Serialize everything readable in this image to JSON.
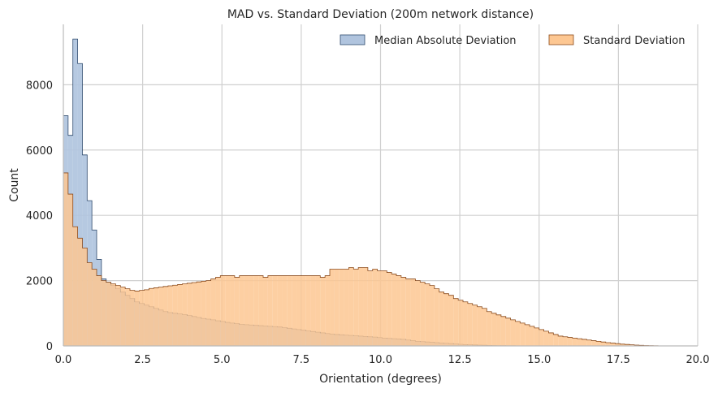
{
  "chart_data": {
    "type": "histogram",
    "title": "MAD vs. Standard Deviation (200m network distance)",
    "xlabel": "Orientation (degrees)",
    "ylabel": "Count",
    "xlim": [
      0,
      20
    ],
    "ylim": [
      0,
      9850
    ],
    "xticks": [
      "0.0",
      "2.5",
      "5.0",
      "7.5",
      "10.0",
      "12.5",
      "15.0",
      "17.5",
      "20.0"
    ],
    "yticks": [
      "0",
      "2000",
      "4000",
      "6000",
      "8000"
    ],
    "grid": true,
    "legend_position": "top-right",
    "bin_width": 0.15,
    "series": [
      {
        "name": "Median Absolute Deviation",
        "fill": "#b0c4de",
        "edge": "#2f4b6e",
        "bin_start": 0.0,
        "counts": [
          7050,
          6450,
          9400,
          8650,
          5850,
          4450,
          3550,
          2650,
          2050,
          1950,
          1850,
          1750,
          1650,
          1550,
          1450,
          1350,
          1300,
          1250,
          1200,
          1150,
          1100,
          1050,
          1020,
          1000,
          980,
          960,
          930,
          900,
          870,
          840,
          820,
          800,
          770,
          750,
          720,
          700,
          680,
          660,
          650,
          640,
          630,
          620,
          610,
          600,
          590,
          580,
          560,
          540,
          520,
          500,
          480,
          460,
          440,
          420,
          400,
          380,
          360,
          350,
          340,
          330,
          320,
          310,
          300,
          290,
          280,
          270,
          255,
          240,
          230,
          220,
          210,
          200,
          180,
          160,
          140,
          130,
          120,
          110,
          100,
          90,
          80,
          70,
          60,
          50,
          40,
          35,
          30,
          25,
          20,
          15,
          12,
          10,
          8,
          6,
          5,
          4,
          3,
          2,
          1,
          1,
          0,
          0,
          0,
          0,
          0,
          0,
          0,
          0,
          0,
          0,
          0,
          0,
          0,
          0,
          0,
          0,
          0,
          0,
          0,
          0,
          0,
          0,
          0,
          0,
          0,
          0,
          0,
          0,
          0,
          0,
          0,
          0,
          0,
          0
        ]
      },
      {
        "name": "Standard Deviation",
        "fill": "#fdc792",
        "edge": "#8b4a1a",
        "bin_start": 0.0,
        "counts": [
          5300,
          4650,
          3650,
          3300,
          3000,
          2550,
          2350,
          2150,
          2000,
          1950,
          1900,
          1850,
          1800,
          1750,
          1700,
          1680,
          1700,
          1720,
          1760,
          1780,
          1800,
          1820,
          1840,
          1860,
          1880,
          1900,
          1920,
          1940,
          1960,
          1980,
          2000,
          2050,
          2100,
          2150,
          2150,
          2150,
          2100,
          2150,
          2150,
          2150,
          2150,
          2150,
          2100,
          2150,
          2150,
          2150,
          2150,
          2150,
          2150,
          2150,
          2150,
          2150,
          2150,
          2150,
          2100,
          2150,
          2350,
          2350,
          2350,
          2350,
          2400,
          2350,
          2400,
          2400,
          2300,
          2350,
          2300,
          2300,
          2250,
          2200,
          2150,
          2100,
          2050,
          2050,
          2000,
          1950,
          1900,
          1850,
          1750,
          1650,
          1600,
          1550,
          1450,
          1400,
          1350,
          1300,
          1250,
          1200,
          1150,
          1050,
          1000,
          950,
          900,
          850,
          800,
          750,
          700,
          650,
          600,
          550,
          500,
          450,
          400,
          350,
          300,
          280,
          260,
          240,
          220,
          200,
          180,
          160,
          140,
          120,
          100,
          85,
          70,
          55,
          45,
          35,
          25,
          18,
          12,
          8,
          5,
          3,
          2,
          1,
          0,
          0,
          0,
          0,
          0,
          0
        ]
      }
    ]
  }
}
